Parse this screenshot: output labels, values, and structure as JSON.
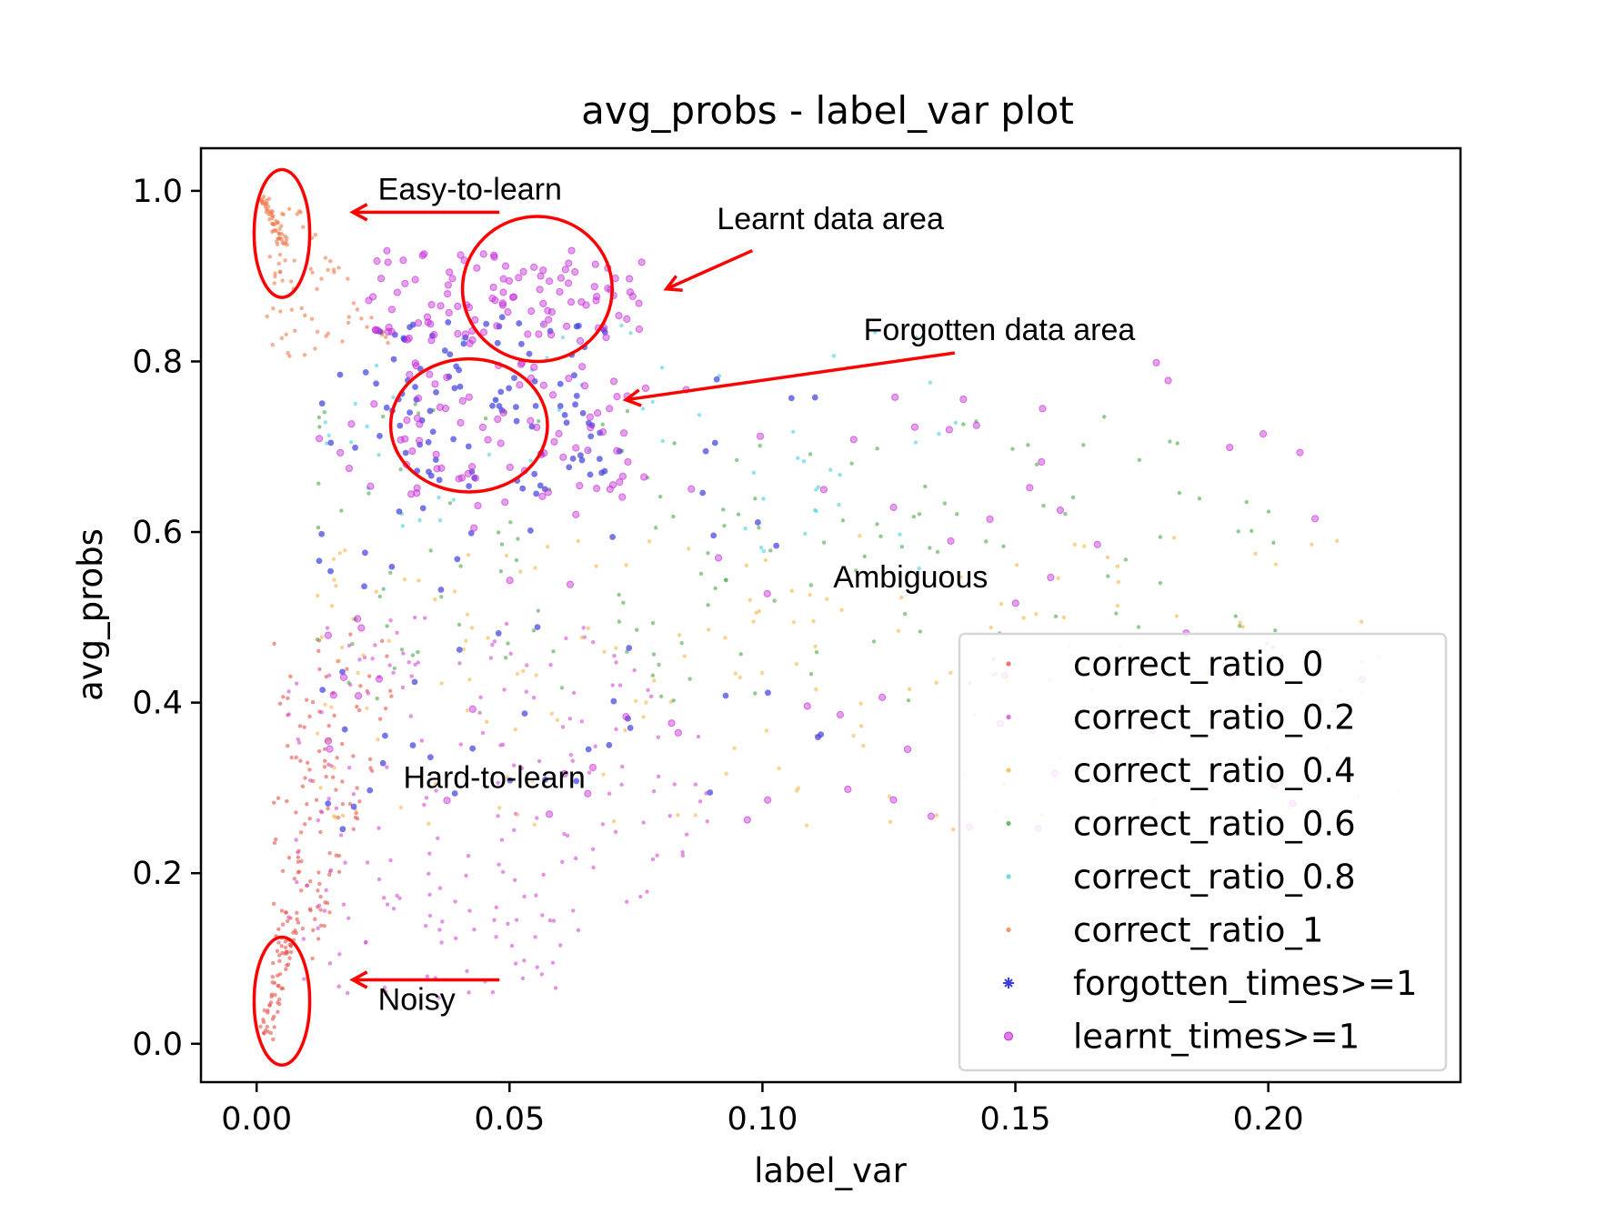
{
  "chart_data": {
    "type": "scatter",
    "title": "avg_probs - label_var plot",
    "xlabel": "label_var",
    "ylabel": "avg_probs",
    "xlim": [
      -0.011,
      0.238
    ],
    "ylim": [
      -0.045,
      1.05
    ],
    "xticks": [
      0.0,
      0.05,
      0.1,
      0.15,
      0.2
    ],
    "xtick_labels": [
      "0.00",
      "0.05",
      "0.10",
      "0.15",
      "0.20"
    ],
    "yticks": [
      0.0,
      0.2,
      0.4,
      0.6,
      0.8,
      1.0
    ],
    "ytick_labels": [
      "0.0",
      "0.2",
      "0.4",
      "0.6",
      "0.8",
      "1.0"
    ],
    "grid": false,
    "legend_position": "lower-right",
    "series": [
      {
        "name": "correct_ratio_0",
        "color": "#e8524a",
        "marker": "dot",
        "count": 190,
        "region": "x 0.000-0.028, y 0.00-0.48 (dense near x=0, y=0)"
      },
      {
        "name": "correct_ratio_0.2",
        "color": "#d04ad4",
        "marker": "dot",
        "count": 200,
        "region": "x 0.005-0.12, y 0.05-0.50"
      },
      {
        "name": "correct_ratio_0.4",
        "color": "#f7b64a",
        "marker": "dot",
        "count": 190,
        "region": "x 0.010-0.23, y 0.25-0.60"
      },
      {
        "name": "correct_ratio_0.6",
        "color": "#4aa94a",
        "marker": "dot",
        "count": 150,
        "region": "x 0.010-0.21, y 0.40-0.75"
      },
      {
        "name": "correct_ratio_0.8",
        "color": "#4ad0d8",
        "marker": "dot",
        "count": 60,
        "region": "x 0.010-0.15, y 0.55-0.85"
      },
      {
        "name": "correct_ratio_1",
        "color": "#f27a4a",
        "marker": "dot",
        "count": 120,
        "region": "x 0.000-0.026, y 0.80-1.00 (dense near x=0, y=1)"
      },
      {
        "name": "forgotten_times>=1",
        "color": "#3d3de0",
        "marker": "star",
        "count": 160,
        "region": "x 0.010-0.12, y 0.25-0.85"
      },
      {
        "name": "learnt_times>=1",
        "color": "#c42ad6",
        "marker": "circle",
        "count": 270,
        "region": "x 0.010-0.22, y 0.25-0.93"
      }
    ],
    "annotations": [
      {
        "text": "Easy-to-learn",
        "x": 0.024,
        "y": 0.99
      },
      {
        "text": "Learnt data area",
        "x": 0.091,
        "y": 0.955
      },
      {
        "text": "Forgotten data area",
        "x": 0.12,
        "y": 0.825
      },
      {
        "text": "Ambiguous",
        "x": 0.114,
        "y": 0.535
      },
      {
        "text": "Hard-to-learn",
        "x": 0.029,
        "y": 0.3
      },
      {
        "text": "Noisy",
        "x": 0.024,
        "y": 0.04
      }
    ],
    "highlight_ellipses": [
      {
        "cx": 0.005,
        "cy": 0.95,
        "rx": 0.0055,
        "ry": 0.075
      },
      {
        "cx": 0.0555,
        "cy": 0.885,
        "rx": 0.0148,
        "ry": 0.085
      },
      {
        "cx": 0.042,
        "cy": 0.725,
        "rx": 0.0155,
        "ry": 0.078
      },
      {
        "cx": 0.005,
        "cy": 0.05,
        "rx": 0.0055,
        "ry": 0.075
      }
    ],
    "arrows": [
      {
        "from": [
          0.048,
          0.975
        ],
        "to": [
          0.019,
          0.975
        ]
      },
      {
        "from": [
          0.098,
          0.93
        ],
        "to": [
          0.081,
          0.885
        ]
      },
      {
        "from": [
          0.138,
          0.81
        ],
        "to": [
          0.073,
          0.755
        ]
      },
      {
        "from": [
          0.048,
          0.075
        ],
        "to": [
          0.019,
          0.075
        ]
      }
    ],
    "annotation_color": "#ff0000"
  }
}
